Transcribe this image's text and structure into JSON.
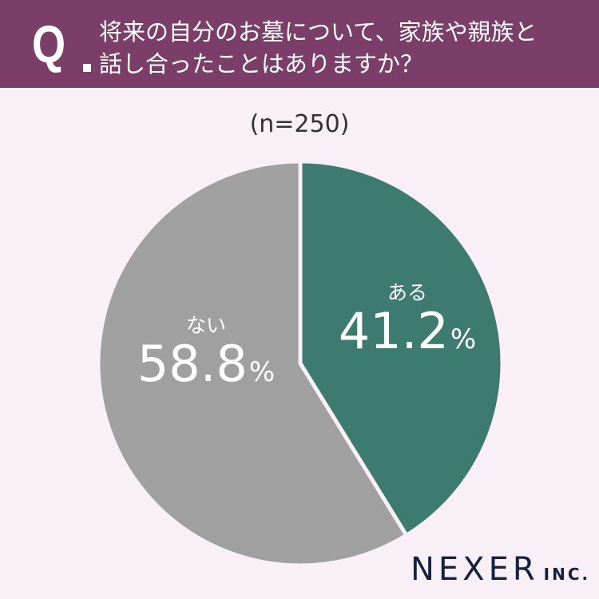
{
  "header": {
    "q_mark": "Q",
    "question_line1": "将来の自分のお墓について、家族や親族と",
    "question_line2": "話し合ったことはありますか？",
    "background_color": "#7a3e68"
  },
  "sample_size": "(n=250)",
  "slices": [
    {
      "label": "ある",
      "value": "41.2",
      "unit": "%",
      "color": "#3d7a6f"
    },
    {
      "label": "ない",
      "value": "58.8",
      "unit": "%",
      "color": "#a0a0a0"
    }
  ],
  "logo": {
    "main": "NEXER",
    "sub": "INC."
  },
  "chart_data": {
    "type": "pie",
    "title": "将来の自分のお墓について、家族や親族と話し合ったことはありますか？",
    "subtitle": "(n=250)",
    "categories": [
      "ある",
      "ない"
    ],
    "values": [
      41.2,
      58.8
    ],
    "unit": "%",
    "colors": [
      "#3d7a6f",
      "#a0a0a0"
    ],
    "start_angle": "12 o'clock, clockwise",
    "legend": "none (labels inside slices)"
  }
}
